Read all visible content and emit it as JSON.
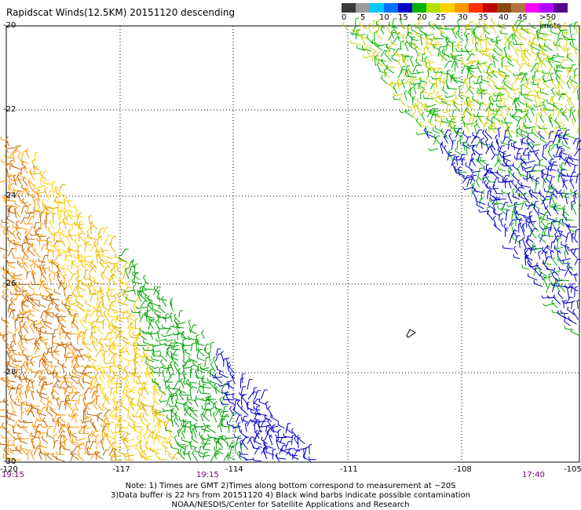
{
  "title": "Rapidscat Winds(12.5KM) 20151120 descending",
  "legend": {
    "labels": [
      "0",
      "5",
      "10",
      "15",
      "20",
      "25",
      "30",
      "35",
      "40",
      "45",
      ">50 knots"
    ],
    "colors": [
      "#3a3a3a",
      "#9a9a9a",
      "#00c8ff",
      "#0070ff",
      "#0000c8",
      "#00b000",
      "#b0e000",
      "#ffd000",
      "#ff9800",
      "#ff3000",
      "#c00000",
      "#8b4513",
      "#b07040",
      "#ff00ff",
      "#b000ff",
      "#5a0090"
    ]
  },
  "map": {
    "lat_labels": [
      "-20",
      "-22",
      "-24",
      "-26",
      "-28",
      "-30"
    ],
    "lon_labels": [
      "-120",
      "-117",
      "-114",
      "-111",
      "-108",
      "-105"
    ],
    "time_labels": [
      "19:15",
      "19:15",
      "17:40"
    ]
  },
  "footer": {
    "line1": "Note: 1) Times are GMT 2)Times along bottom correspond to measurement at ~20S",
    "line2": "3)Data buffer is 22 hrs from 20151120 4) Black wind barbs indicate possible contamination",
    "line3": "NOAA/NESDIS/Center for Satellite Applications and Research"
  }
}
